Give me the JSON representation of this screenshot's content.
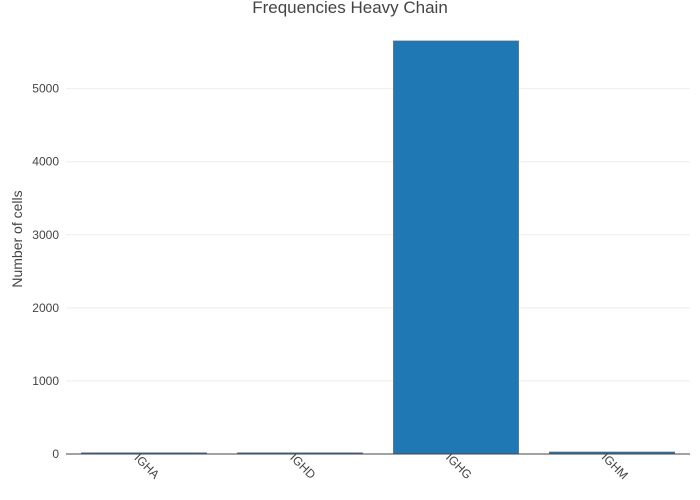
{
  "chart_data": {
    "type": "bar",
    "title": "Frequencies Heavy Chain",
    "xlabel": "",
    "ylabel": "Number of cells",
    "categories": [
      "IGHA",
      "IGHD",
      "IGHG",
      "IGHM"
    ],
    "values": [
      10,
      8,
      5650,
      25
    ],
    "ylim": [
      0,
      5720
    ],
    "yticks": [
      0,
      1000,
      2000,
      3000,
      4000,
      5000
    ],
    "grid": true,
    "legend": "none",
    "colors": {
      "bar": "#1f77b4",
      "bar_edge": "#4a6a8a",
      "grid": "#eeeeee",
      "text": "#444444"
    }
  }
}
